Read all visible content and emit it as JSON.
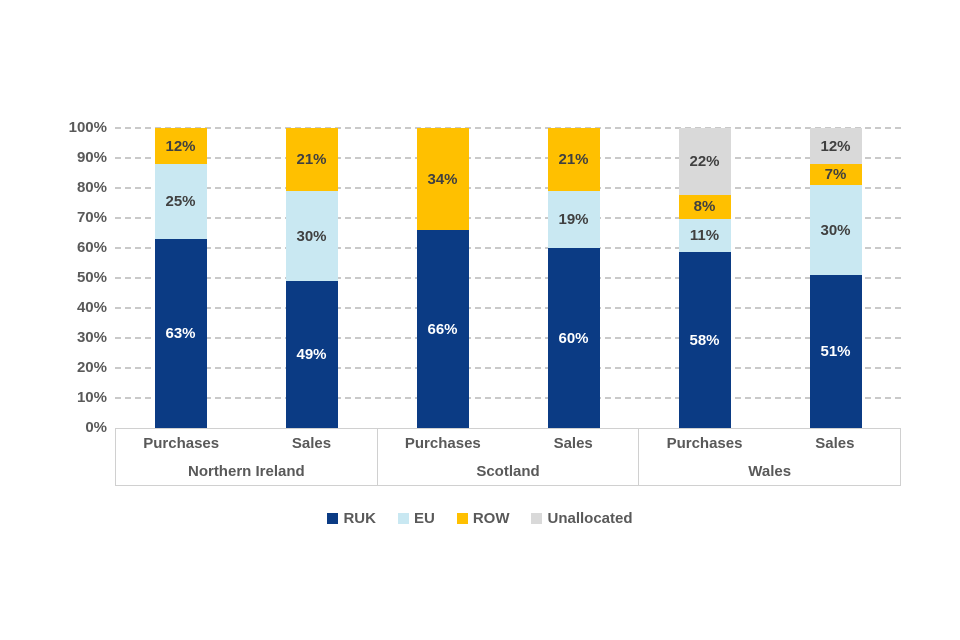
{
  "chart_data": {
    "type": "bar",
    "subtype": "percent-stacked-column",
    "title": "",
    "xlabel": "",
    "ylabel": "",
    "ylim": [
      0,
      100
    ],
    "y_tick_labels": [
      "0%",
      "10%",
      "20%",
      "30%",
      "40%",
      "50%",
      "60%",
      "70%",
      "80%",
      "90%",
      "100%"
    ],
    "grid": "dashed-horizontal",
    "legend_position": "bottom",
    "colors": {
      "grid": "#c9c9c9",
      "axis_text": "#595959",
      "label_dark": "#404040",
      "label_light": "#ffffff",
      "box_border": "#d0d0d0"
    },
    "series": [
      {
        "name": "RUK",
        "color": "#0b3b84",
        "label_color": "#ffffff"
      },
      {
        "name": "EU",
        "color": "#c9e8f2",
        "label_color": "#404040"
      },
      {
        "name": "ROW",
        "color": "#ffc000",
        "label_color": "#404040"
      },
      {
        "name": "Unallocated",
        "color": "#d9d9d9",
        "label_color": "#404040"
      }
    ],
    "groups": [
      {
        "label": "Northern Ireland",
        "bars": [
          {
            "category": "Purchases",
            "values": {
              "RUK": 63,
              "EU": 25,
              "ROW": 12,
              "Unallocated": 0
            },
            "labels": {
              "RUK": "63%",
              "EU": "25%",
              "ROW": "12%",
              "Unallocated": ""
            }
          },
          {
            "category": "Sales",
            "values": {
              "RUK": 49,
              "EU": 30,
              "ROW": 21,
              "Unallocated": 0
            },
            "labels": {
              "RUK": "49%",
              "EU": "30%",
              "ROW": "21%",
              "Unallocated": ""
            }
          }
        ]
      },
      {
        "label": "Scotland",
        "bars": [
          {
            "category": "Purchases",
            "values": {
              "RUK": 66,
              "EU": 0,
              "ROW": 34,
              "Unallocated": 0
            },
            "labels": {
              "RUK": "66%",
              "EU": "",
              "ROW": "34%",
              "Unallocated": ""
            }
          },
          {
            "category": "Sales",
            "values": {
              "RUK": 60,
              "EU": 19,
              "ROW": 21,
              "Unallocated": 0
            },
            "labels": {
              "RUK": "60%",
              "EU": "19%",
              "ROW": "21%",
              "Unallocated": ""
            }
          }
        ]
      },
      {
        "label": "Wales",
        "bars": [
          {
            "category": "Purchases",
            "values": {
              "RUK": 58,
              "EU": 11,
              "ROW": 8,
              "Unallocated": 22
            },
            "labels": {
              "RUK": "58%",
              "EU": "11%",
              "ROW": "8%",
              "Unallocated": "22%"
            }
          },
          {
            "category": "Sales",
            "values": {
              "RUK": 51,
              "EU": 30,
              "ROW": 7,
              "Unallocated": 12
            },
            "labels": {
              "RUK": "51%",
              "EU": "30%",
              "ROW": "7%",
              "Unallocated": "12%"
            }
          }
        ]
      }
    ]
  }
}
